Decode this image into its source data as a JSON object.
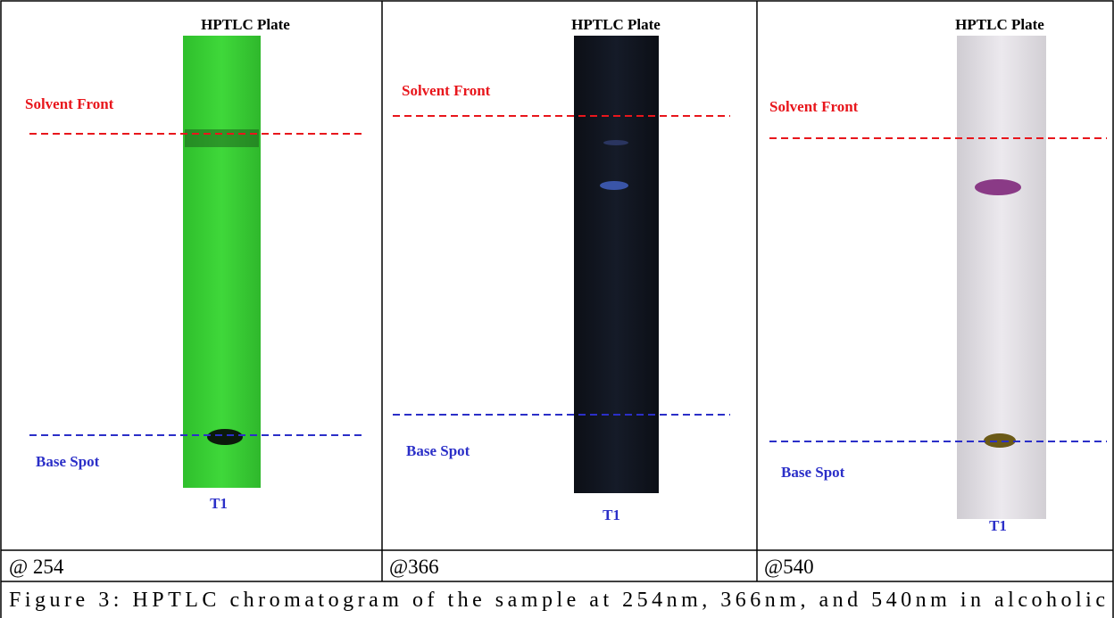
{
  "panels": [
    {
      "title": "HPTLC Plate",
      "solvent_front": "Solvent Front",
      "base_spot": "Base Spot",
      "sample": "T1",
      "label": "@ 254"
    },
    {
      "title": "HPTLC Plate",
      "solvent_front": "Solvent Front",
      "base_spot": "Base Spot",
      "sample": "T1",
      "label": "@366"
    },
    {
      "title": "HPTLC Plate",
      "solvent_front": "Solvent Front",
      "base_spot": "Base Spot",
      "sample": "T1",
      "label": "@540"
    }
  ],
  "caption": "Figure 3: HPTLC chromatogram of the sample at 254nm, 366nm, and 540nm in alcoholic"
}
